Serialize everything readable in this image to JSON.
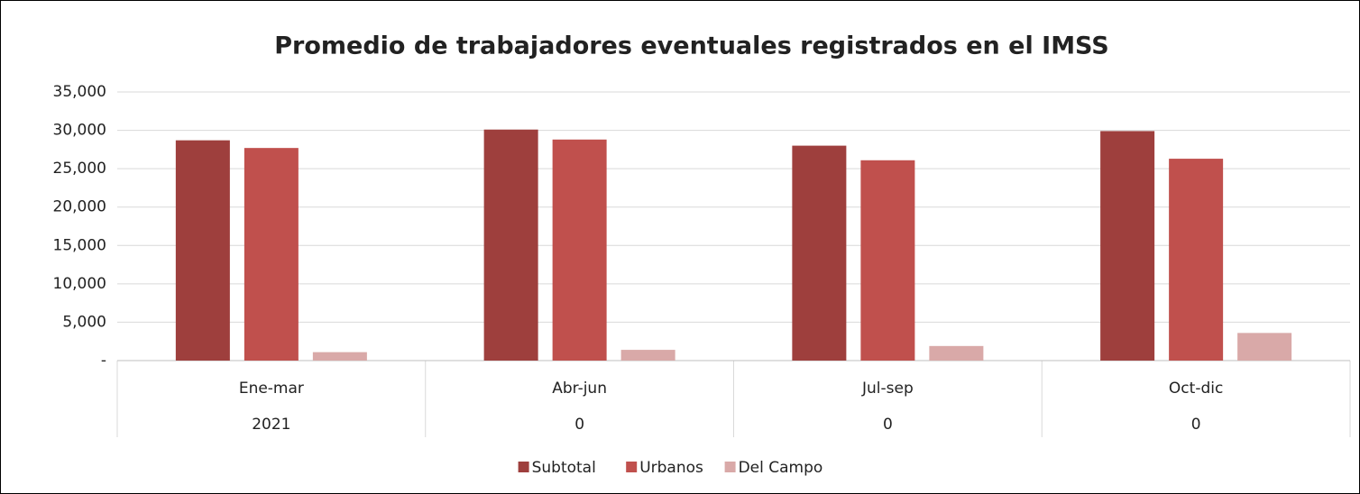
{
  "chart_data": {
    "type": "bar",
    "title": "Promedio de trabajadores eventuales registrados en el IMSS",
    "categories": [
      "Ene-mar",
      "Abr-jun",
      "Jul-sep",
      "Oct-dic"
    ],
    "category_groups": [
      "2021",
      "0",
      "0",
      "0"
    ],
    "series": [
      {
        "name": "Subtotal",
        "color": "#9e3f3d",
        "values": [
          28700,
          30100,
          28000,
          29900
        ]
      },
      {
        "name": "Urbanos",
        "color": "#c0504d",
        "values": [
          27700,
          28800,
          26100,
          26300
        ]
      },
      {
        "name": "Del Campo",
        "color": "#d9a9a8",
        "values": [
          1100,
          1400,
          1900,
          3600
        ]
      }
    ],
    "ylim": [
      0,
      35000
    ],
    "yticks": [
      {
        "value": 0,
        "label": "-"
      },
      {
        "value": 5000,
        "label": "5,000"
      },
      {
        "value": 10000,
        "label": "10,000"
      },
      {
        "value": 15000,
        "label": "15,000"
      },
      {
        "value": 20000,
        "label": "20,000"
      },
      {
        "value": 25000,
        "label": "25,000"
      },
      {
        "value": 30000,
        "label": "30,000"
      },
      {
        "value": 35000,
        "label": "35,000"
      }
    ],
    "grid": true,
    "legend": "bottom"
  }
}
